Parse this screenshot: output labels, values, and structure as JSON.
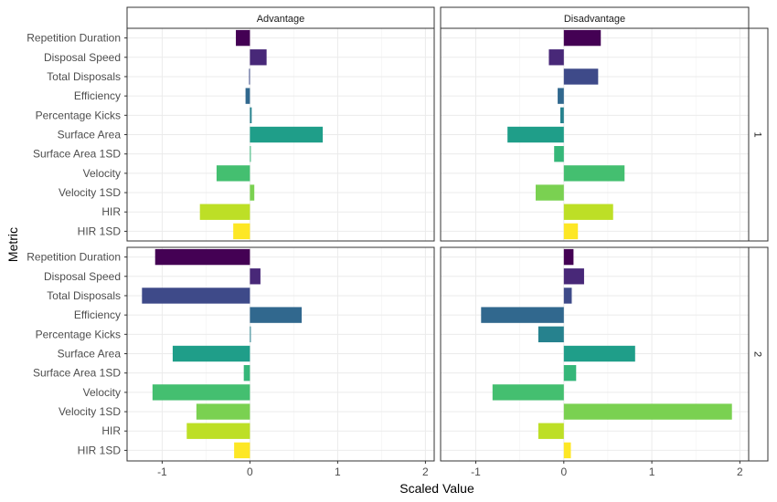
{
  "chart_data": {
    "type": "bar",
    "orientation": "horizontal",
    "xlabel": "Scaled Value",
    "ylabel": "Metric",
    "xlim": [
      -1.4,
      2.1
    ],
    "xticks": [
      -1,
      0,
      1,
      2
    ],
    "grid": true,
    "categories": [
      "Repetition Duration",
      "Disposal Speed",
      "Total Disposals",
      "Efficiency",
      "Percentage Kicks",
      "Surface Area",
      "Surface Area 1SD",
      "Velocity",
      "Velocity 1SD",
      "HIR",
      "HIR 1SD"
    ],
    "colors": [
      "#440154",
      "#482878",
      "#3e4a89",
      "#31688e",
      "#26828e",
      "#1f9e89",
      "#35b779",
      "#44bf70",
      "#7ad151",
      "#bddf26",
      "#fde725"
    ],
    "columns": [
      "Advantage",
      "Disadvantage"
    ],
    "rows": [
      "1",
      "2"
    ],
    "panels": [
      {
        "column": "Advantage",
        "row": "1",
        "values": [
          -0.16,
          0.19,
          -0.01,
          -0.05,
          0.02,
          0.83,
          0.01,
          -0.38,
          0.05,
          -0.57,
          -0.19
        ]
      },
      {
        "column": "Disadvantage",
        "row": "1",
        "values": [
          0.42,
          -0.17,
          0.39,
          -0.07,
          -0.04,
          -0.64,
          -0.11,
          0.69,
          -0.32,
          0.56,
          0.16
        ]
      },
      {
        "column": "Advantage",
        "row": "2",
        "values": [
          -1.08,
          0.12,
          -1.23,
          0.59,
          0.01,
          -0.88,
          -0.07,
          -1.11,
          -0.61,
          -0.72,
          -0.18
        ]
      },
      {
        "column": "Disadvantage",
        "row": "2",
        "values": [
          0.11,
          0.23,
          0.09,
          -0.94,
          -0.29,
          0.81,
          0.14,
          -0.81,
          1.91,
          -0.29,
          0.08
        ]
      }
    ]
  }
}
